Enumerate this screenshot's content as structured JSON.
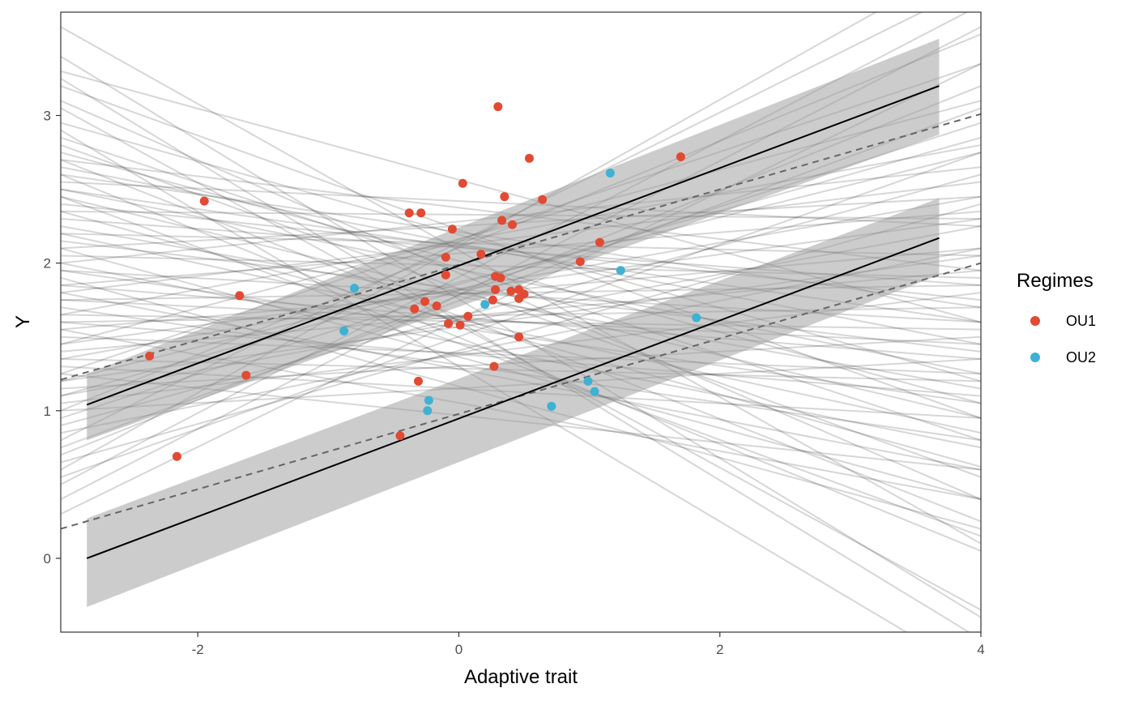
{
  "chart_data": {
    "type": "scatter",
    "xlabel": "Adaptive trait",
    "ylabel": "Y",
    "xlim": [
      -3.05,
      4.0
    ],
    "ylim": [
      -0.5,
      3.7
    ],
    "x_ticks": [
      -2,
      0,
      2,
      4
    ],
    "y_ticks": [
      0,
      1,
      2,
      3
    ],
    "x_tick_labels": [
      "-2",
      "0",
      "2",
      "4"
    ],
    "y_tick_labels": [
      "0",
      "1",
      "2",
      "3"
    ],
    "grid": false,
    "legend": {
      "title": "Regimes",
      "placement": "right",
      "entries": [
        {
          "label": "OU1",
          "color": "#e24a33"
        },
        {
          "label": "OU2",
          "color": "#3fb1d2"
        }
      ]
    },
    "series": [
      {
        "name": "OU1",
        "color": "#e24a33",
        "points": [
          [
            0.3,
            3.06
          ],
          [
            1.7,
            2.72
          ],
          [
            0.54,
            2.71
          ],
          [
            0.03,
            2.54
          ],
          [
            -1.95,
            2.42
          ],
          [
            0.35,
            2.45
          ],
          [
            0.64,
            2.43
          ],
          [
            -0.38,
            2.34
          ],
          [
            -0.29,
            2.34
          ],
          [
            0.33,
            2.29
          ],
          [
            0.41,
            2.26
          ],
          [
            -0.05,
            2.23
          ],
          [
            1.08,
            2.14
          ],
          [
            0.17,
            2.06
          ],
          [
            -0.1,
            2.04
          ],
          [
            0.93,
            2.01
          ],
          [
            -0.1,
            1.92
          ],
          [
            0.28,
            1.91
          ],
          [
            0.32,
            1.9
          ],
          [
            0.28,
            1.82
          ],
          [
            0.4,
            1.81
          ],
          [
            0.46,
            1.82
          ],
          [
            0.5,
            1.79
          ],
          [
            -1.68,
            1.78
          ],
          [
            0.46,
            1.76
          ],
          [
            0.26,
            1.75
          ],
          [
            -0.26,
            1.74
          ],
          [
            -0.17,
            1.71
          ],
          [
            -0.34,
            1.69
          ],
          [
            0.07,
            1.64
          ],
          [
            -0.08,
            1.59
          ],
          [
            0.01,
            1.58
          ],
          [
            0.46,
            1.5
          ],
          [
            -2.37,
            1.37
          ],
          [
            0.27,
            1.3
          ],
          [
            -1.63,
            1.24
          ],
          [
            -0.31,
            1.2
          ],
          [
            -0.45,
            0.83
          ],
          [
            -2.16,
            0.69
          ]
        ]
      },
      {
        "name": "OU2",
        "color": "#3fb1d2",
        "points": [
          [
            1.16,
            2.61
          ],
          [
            1.24,
            1.95
          ],
          [
            -0.8,
            1.83
          ],
          [
            0.2,
            1.72
          ],
          [
            1.82,
            1.63
          ],
          [
            -0.88,
            1.54
          ],
          [
            0.99,
            1.2
          ],
          [
            1.04,
            1.13
          ],
          [
            -0.23,
            1.07
          ],
          [
            -0.24,
            1.0
          ],
          [
            0.71,
            1.03
          ]
        ]
      }
    ],
    "fit_lines": [
      {
        "regime": "OU1",
        "x": [
          -2.85,
          3.68
        ],
        "y": [
          1.04,
          3.2
        ],
        "band_lower": [
          0.8,
          2.87
        ],
        "band_upper": [
          1.25,
          3.52
        ]
      },
      {
        "regime": "OU2",
        "x": [
          -2.85,
          3.68
        ],
        "y": [
          0.0,
          2.17
        ],
        "band_lower": [
          -0.33,
          1.92
        ],
        "band_upper": [
          0.27,
          2.44
        ]
      }
    ],
    "dashed_lines": [
      {
        "x": [
          -3.05,
          4.0
        ],
        "y": [
          1.21,
          3.01
        ]
      },
      {
        "x": [
          -3.05,
          4.0
        ],
        "y": [
          0.2,
          2.0
        ]
      }
    ],
    "sample_lines_note": "",
    "sample_lines": [
      [
        2.15,
        1.4
      ],
      [
        2.35,
        0.62
      ],
      [
        2.05,
        1.9
      ],
      [
        1.8,
        2.55
      ],
      [
        2.6,
        0.05
      ],
      [
        1.45,
        3.1
      ],
      [
        2.9,
        -0.8
      ],
      [
        1.75,
        1.45
      ],
      [
        1.55,
        2.1
      ],
      [
        2.25,
        1.15
      ],
      [
        1.2,
        2.75
      ],
      [
        2.7,
        0.25
      ],
      [
        1.95,
        1.05
      ],
      [
        2.45,
        0.95
      ],
      [
        1.6,
        1.7
      ],
      [
        1.0,
        3.55
      ],
      [
        3.05,
        -0.35
      ],
      [
        1.85,
        2.35
      ],
      [
        2.1,
        0.4
      ],
      [
        1.35,
        2.45
      ],
      [
        2.5,
        1.6
      ],
      [
        0.8,
        3.9
      ],
      [
        3.25,
        -0.55
      ],
      [
        1.7,
        0.8
      ],
      [
        2.0,
        2.65
      ],
      [
        1.5,
        1.25
      ],
      [
        2.8,
        0.55
      ],
      [
        0.95,
        2.95
      ],
      [
        2.4,
        1.75
      ],
      [
        1.9,
        0.2
      ],
      [
        1.25,
        3.35
      ],
      [
        2.2,
        2.05
      ],
      [
        1.65,
        1.55
      ],
      [
        2.95,
        1.2
      ],
      [
        1.1,
        2.25
      ],
      [
        0.6,
        4.1
      ],
      [
        3.4,
        -0.4
      ],
      [
        1.4,
        1.95
      ],
      [
        2.55,
        2.25
      ],
      [
        1.8,
        0.6
      ],
      [
        1.05,
        1.8
      ],
      [
        2.65,
        1.45
      ],
      [
        1.3,
        0.95
      ],
      [
        2.3,
        1.85
      ],
      [
        0.7,
        3.2
      ],
      [
        1.15,
        1.5
      ],
      [
        2.1,
        2.45
      ],
      [
        1.95,
        1.6
      ],
      [
        1.55,
        0.4
      ],
      [
        2.45,
        0.15
      ],
      [
        0.85,
        2.1
      ],
      [
        2.75,
        1.05
      ],
      [
        1.35,
        1.2
      ],
      [
        2.2,
        0.85
      ],
      [
        1.65,
        2.8
      ],
      [
        1.0,
        1.35
      ],
      [
        3.6,
        0.1
      ],
      [
        0.4,
        3.6
      ],
      [
        2.85,
        0.8
      ],
      [
        1.2,
        2.05
      ],
      [
        1.75,
        1.85
      ],
      [
        2.35,
        2.3
      ],
      [
        0.9,
        2.6
      ],
      [
        2.0,
        0.75
      ],
      [
        1.45,
        2.3
      ],
      [
        0.5,
        3.75
      ],
      [
        3.1,
        0.4
      ],
      [
        1.6,
        1.1
      ],
      [
        2.5,
        1.25
      ],
      [
        1.1,
        2.85
      ],
      [
        0.3,
        3.35
      ],
      [
        3.3,
        1.6
      ],
      [
        0.65,
        2.4
      ],
      [
        2.7,
        1.95
      ],
      [
        1.25,
        0.6
      ],
      [
        0.75,
        3.05
      ],
      [
        3.2,
        0.95
      ],
      [
        1.85,
        1.35
      ],
      [
        0.55,
        2.75
      ],
      [
        2.6,
        1.7
      ]
    ]
  }
}
